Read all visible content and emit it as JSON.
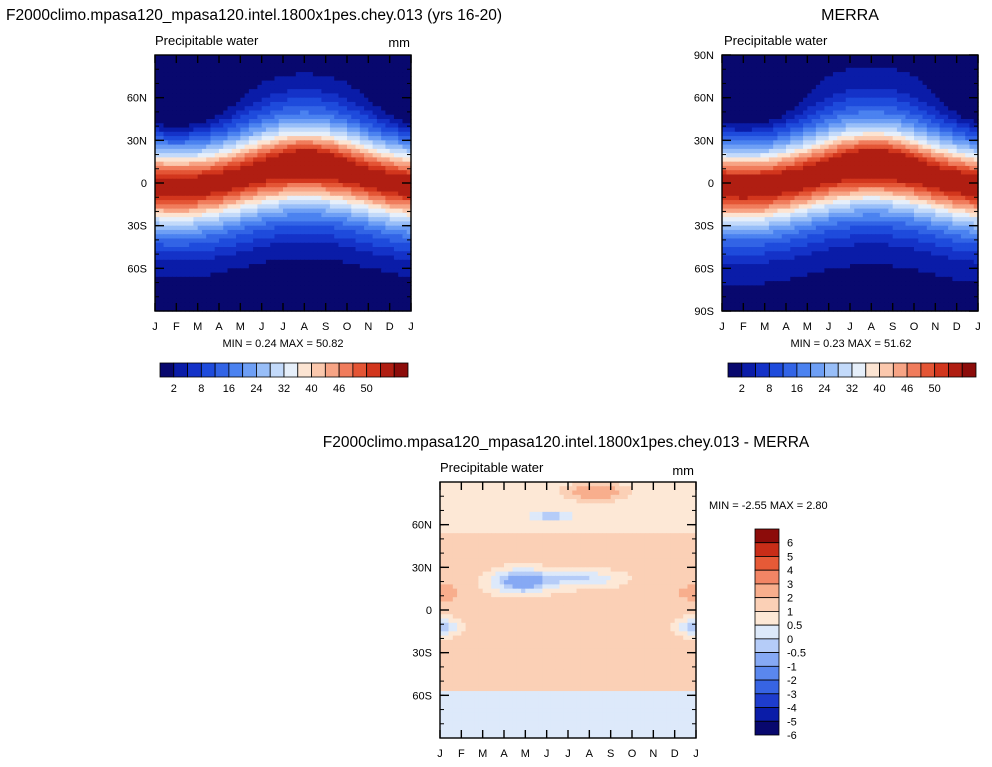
{
  "chart_data": [
    {
      "type": "heatmap",
      "title": "F2000climo.mpasa120_mpasa120.intel.1800x1pes.chey.013 (yrs 16-20)",
      "subtitle_left": "Precipitable water",
      "units": "mm",
      "x_ticks": [
        "J",
        "F",
        "M",
        "A",
        "M",
        "J",
        "J",
        "A",
        "S",
        "O",
        "N",
        "D",
        "J"
      ],
      "y_ticks": [
        "60N",
        "30N",
        "0",
        "30S",
        "60S"
      ],
      "stats": "MIN =   0.24 MAX =  50.82",
      "colorbar_labels": [
        "2",
        "8",
        "16",
        "24",
        "32",
        "40",
        "46",
        "50"
      ],
      "value_range": [
        0.24,
        50.82
      ]
    },
    {
      "type": "heatmap",
      "title": "MERRA",
      "subtitle_left": "Precipitable water",
      "units": "",
      "x_ticks": [
        "J",
        "F",
        "M",
        "A",
        "M",
        "J",
        "J",
        "A",
        "S",
        "O",
        "N",
        "D",
        "J"
      ],
      "y_ticks": [
        "90N",
        "60N",
        "30N",
        "0",
        "30S",
        "60S",
        "90S"
      ],
      "stats": "MIN =   0.23 MAX =  51.62",
      "colorbar_labels": [
        "2",
        "8",
        "16",
        "24",
        "32",
        "40",
        "46",
        "50"
      ],
      "value_range": [
        0.23,
        51.62
      ]
    },
    {
      "type": "heatmap",
      "title": "F2000climo.mpasa120_mpasa120.intel.1800x1pes.chey.013 - MERRA",
      "subtitle_left": "Precipitable water",
      "units": "mm",
      "x_ticks": [
        "J",
        "F",
        "M",
        "A",
        "M",
        "J",
        "J",
        "A",
        "S",
        "O",
        "N",
        "D",
        "J"
      ],
      "y_ticks": [
        "60N",
        "30N",
        "0",
        "30S",
        "60S"
      ],
      "stats": "MIN =  -2.55 MAX =   2.80",
      "colorbar_labels": [
        "6",
        "5",
        "4",
        "3",
        "2",
        "1",
        "0.5",
        "0",
        "-0.5",
        "-1",
        "-2",
        "-3",
        "-4",
        "-5",
        "-6"
      ],
      "value_range": [
        -2.55,
        2.8
      ]
    }
  ],
  "palettes": {
    "seq": [
      "#08086e",
      "#0a1ca8",
      "#1432c8",
      "#1e4bdc",
      "#3264e6",
      "#4b82f0",
      "#6e9ff5",
      "#98bef8",
      "#c3dafa",
      "#e6effa",
      "#fce4d2",
      "#fbc8ad",
      "#f7a485",
      "#f07c5c",
      "#e45535",
      "#d2361d",
      "#b01e12",
      "#8c0c0a"
    ],
    "diff": [
      "#08086e",
      "#0a1ca8",
      "#1e3ccd",
      "#3764e3",
      "#5a87ee",
      "#86a9f4",
      "#b5ccf8",
      "#dde9fa",
      "#fde8d6",
      "#fbd0b6",
      "#f8ae8d",
      "#f28565",
      "#e65a37",
      "#c92d18",
      "#8c0c0a"
    ]
  }
}
